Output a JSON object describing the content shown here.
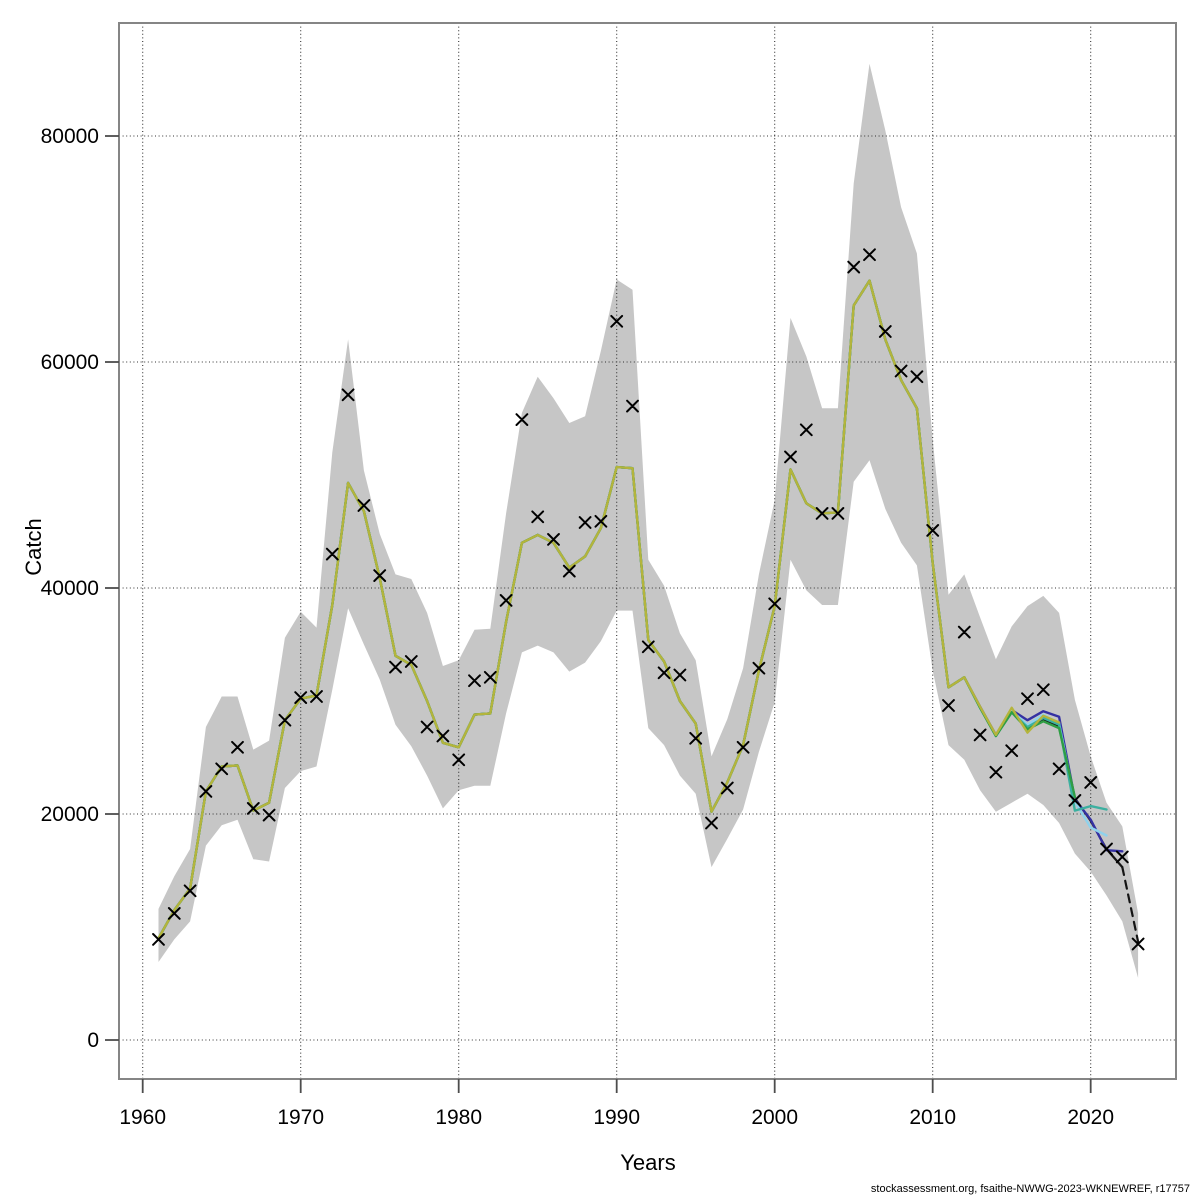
{
  "footer": {
    "credit": "stockassessment.org, fsaithe-NWWG-2023-WKNEWREF, r17757"
  },
  "chart_data": {
    "type": "line",
    "title": "",
    "xlabel": "Years",
    "ylabel": "Catch",
    "grid": "dotted",
    "legend_position": "none",
    "xlim": [
      1958.5,
      2025.4
    ],
    "ylim": [
      -3451,
      90000
    ],
    "x_ticks": [
      1960,
      1970,
      1980,
      1990,
      2000,
      2010,
      2020
    ],
    "y_ticks": [
      0,
      20000,
      40000,
      60000,
      80000
    ],
    "colors": {
      "band": "#c6c6c6",
      "grid": "#333333",
      "box": "#858585",
      "tick": "#4d4d4d",
      "marker": "#000000"
    },
    "years": [
      1961,
      1962,
      1963,
      1964,
      1965,
      1966,
      1967,
      1968,
      1969,
      1970,
      1971,
      1972,
      1973,
      1974,
      1975,
      1976,
      1977,
      1978,
      1979,
      1980,
      1981,
      1982,
      1983,
      1984,
      1985,
      1986,
      1987,
      1988,
      1989,
      1990,
      1991,
      1992,
      1993,
      1994,
      1995,
      1996,
      1997,
      1998,
      1999,
      2000,
      2001,
      2002,
      2003,
      2004,
      2005,
      2006,
      2007,
      2008,
      2009,
      2010,
      2011,
      2012,
      2013,
      2014,
      2015,
      2016,
      2017,
      2018,
      2019,
      2020,
      2021,
      2022,
      2023
    ],
    "observations": {
      "name": "observed-catch",
      "marker": "x",
      "color": "#000000",
      "values": [
        8900,
        11200,
        13200,
        22000,
        24000,
        25900,
        20500,
        19900,
        28300,
        30300,
        30400,
        43000,
        57100,
        47300,
        41100,
        33000,
        33500,
        27700,
        26900,
        24800,
        31800,
        32100,
        38900,
        54900,
        46300,
        44300,
        41500,
        45800,
        45900,
        63600,
        56100,
        34800,
        32500,
        32300,
        26700,
        19200,
        22300,
        25900,
        32900,
        38600,
        51600,
        54000,
        46600,
        46600,
        68400,
        69500,
        62700,
        59200,
        58700,
        45100,
        29600,
        36100,
        27000,
        23700,
        25600,
        30200,
        31000,
        24000,
        21200,
        22800,
        16900,
        16200,
        8500
      ]
    },
    "band": {
      "name": "confidence-band",
      "color": "#c6c6c6",
      "upper": [
        11600,
        14500,
        16900,
        27700,
        30400,
        30400,
        25700,
        26500,
        35600,
        37900,
        36500,
        52000,
        62000,
        50400,
        44800,
        41200,
        40800,
        37800,
        33100,
        33600,
        36300,
        36400,
        46600,
        55500,
        58700,
        56800,
        54600,
        55200,
        61000,
        67300,
        66400,
        42500,
        40200,
        36000,
        33600,
        25100,
        28400,
        32900,
        41200,
        47800,
        63900,
        60500,
        55900,
        55900,
        75800,
        86400,
        80500,
        73700,
        69600,
        53100,
        39400,
        41200,
        37400,
        33700,
        36600,
        38400,
        39300,
        37800,
        30100,
        25100,
        21000,
        18900,
        11200
      ],
      "lower": [
        6900,
        8900,
        10500,
        17200,
        19000,
        19500,
        16000,
        15800,
        22300,
        23800,
        24200,
        31000,
        38200,
        35000,
        31900,
        27900,
        26000,
        23400,
        20500,
        22100,
        22500,
        22500,
        28900,
        34300,
        34900,
        34300,
        32600,
        33400,
        35300,
        38000,
        38000,
        27600,
        26100,
        23400,
        21800,
        15300,
        17800,
        20400,
        25500,
        29900,
        42500,
        39800,
        38500,
        38500,
        49400,
        51300,
        47000,
        44000,
        42000,
        32700,
        26100,
        24800,
        22100,
        20200,
        21000,
        21800,
        20800,
        19200,
        16500,
        14900,
        12800,
        10500,
        5500
      ]
    },
    "runs": [
      {
        "name": "base-run",
        "color": "#141414",
        "width": 2.2,
        "start_year": 1961,
        "end_year": 2023,
        "dashed_from": 2022,
        "values": [
          9000,
          11500,
          13400,
          22000,
          24200,
          24300,
          20300,
          21000,
          28300,
          30200,
          30500,
          38500,
          49300,
          46800,
          40900,
          34000,
          33200,
          30000,
          26300,
          25900,
          28800,
          28900,
          37000,
          44000,
          44700,
          44000,
          41800,
          42800,
          45300,
          50700,
          50600,
          35400,
          33500,
          30000,
          28000,
          20200,
          22800,
          26100,
          32700,
          38400,
          50500,
          47500,
          46600,
          46700,
          65000,
          67200,
          62000,
          58400,
          55900,
          42200,
          31200,
          32100,
          29400,
          26900,
          29100,
          27600,
          28400,
          27700,
          21400,
          19400,
          16900,
          15300,
          8700
        ]
      },
      {
        "name": "retro-peel-navy",
        "color": "#3531a3",
        "width": 2.4,
        "start_year": 1961,
        "end_year": 2022,
        "values": [
          9000,
          11500,
          13400,
          22000,
          24200,
          24300,
          20300,
          21000,
          28300,
          30200,
          30500,
          38500,
          49300,
          46800,
          40900,
          34000,
          33200,
          30000,
          26300,
          25900,
          28800,
          28900,
          37000,
          44000,
          44700,
          44000,
          41800,
          42800,
          45300,
          50700,
          50600,
          35400,
          33500,
          30000,
          28000,
          20200,
          22800,
          26100,
          32700,
          38400,
          50500,
          47500,
          46600,
          46700,
          65000,
          67200,
          62000,
          58400,
          55900,
          42200,
          31200,
          32100,
          29500,
          27000,
          29200,
          28300,
          29100,
          28600,
          21300,
          19500,
          16800,
          16700
        ]
      },
      {
        "name": "retro-peel-lightblue",
        "color": "#8fd2ec",
        "width": 2.4,
        "start_year": 1961,
        "end_year": 2021,
        "values": [
          9000,
          11500,
          13400,
          22000,
          24200,
          24300,
          20300,
          21000,
          28300,
          30200,
          30500,
          38500,
          49300,
          46800,
          40900,
          34000,
          33200,
          30000,
          26300,
          25900,
          28800,
          28900,
          37000,
          44000,
          44700,
          44000,
          41800,
          42800,
          45300,
          50700,
          50600,
          35400,
          33500,
          30000,
          28000,
          20200,
          22800,
          26100,
          32700,
          38400,
          50500,
          47500,
          46600,
          46700,
          65000,
          67200,
          62000,
          58400,
          55900,
          42200,
          31200,
          32100,
          29400,
          26900,
          29100,
          27900,
          28800,
          28000,
          21100,
          18800,
          18100
        ]
      },
      {
        "name": "retro-peel-teal",
        "color": "#3cb0a0",
        "width": 2.4,
        "start_year": 1961,
        "end_year": 2021,
        "values": [
          9000,
          11500,
          13400,
          22000,
          24200,
          24300,
          20300,
          21000,
          28300,
          30200,
          30500,
          38500,
          49300,
          46800,
          40900,
          34000,
          33200,
          30000,
          26300,
          25900,
          28800,
          28900,
          37000,
          44000,
          44700,
          44000,
          41800,
          42800,
          45300,
          50700,
          50600,
          35400,
          33500,
          30000,
          28000,
          20200,
          22800,
          26100,
          32700,
          38400,
          50500,
          47500,
          46600,
          46700,
          65000,
          67200,
          62000,
          58400,
          55900,
          42200,
          31200,
          32100,
          29400,
          26900,
          29000,
          27700,
          28500,
          27900,
          20300,
          20700,
          20400
        ]
      },
      {
        "name": "retro-peel-green",
        "color": "#2f9e44",
        "width": 2.4,
        "start_year": 1961,
        "end_year": 2019,
        "values": [
          9000,
          11500,
          13400,
          22000,
          24200,
          24300,
          20300,
          21000,
          28300,
          30200,
          30500,
          38500,
          49300,
          46800,
          40900,
          34000,
          33200,
          30000,
          26300,
          25900,
          28800,
          28900,
          37000,
          44000,
          44700,
          44000,
          41800,
          42800,
          45300,
          50700,
          50600,
          35400,
          33500,
          30000,
          28000,
          20200,
          22800,
          26100,
          32700,
          38400,
          50500,
          47500,
          46600,
          46700,
          65000,
          67200,
          62000,
          58400,
          55900,
          42200,
          31200,
          32100,
          29400,
          26900,
          29000,
          27500,
          28200,
          27600,
          21500
        ]
      },
      {
        "name": "retro-peel-olive",
        "color": "#b4b43c",
        "width": 2.4,
        "start_year": 1961,
        "end_year": 2018,
        "values": [
          9000,
          11500,
          13400,
          22000,
          24200,
          24300,
          20300,
          21000,
          28300,
          30200,
          30500,
          38500,
          49300,
          46800,
          40900,
          34000,
          33200,
          30000,
          26300,
          25900,
          28800,
          28900,
          37000,
          44000,
          44700,
          44000,
          41800,
          42800,
          45300,
          50700,
          50600,
          35400,
          33500,
          30000,
          28000,
          20200,
          22800,
          26100,
          32700,
          38400,
          50500,
          47500,
          46600,
          46700,
          65000,
          67200,
          62000,
          58400,
          55900,
          42200,
          31200,
          32100,
          29500,
          27000,
          29400,
          27200,
          28700,
          28100
        ]
      }
    ]
  }
}
